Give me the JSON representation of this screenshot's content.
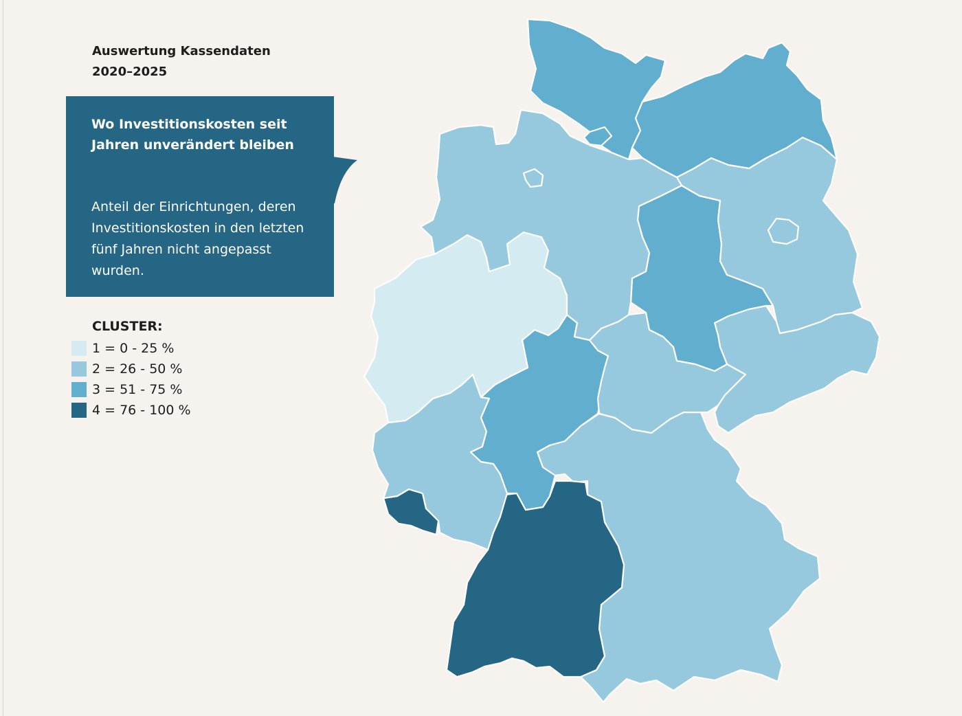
{
  "title": {
    "line1": "Auswertung Kassendaten",
    "line2": "2020–2025"
  },
  "callout": {
    "heading": "Wo Investitionskosten seit Jahren unverändert bleiben",
    "description": "Anteil der Einrichtungen, deren Investitionskosten in den letzten fünf Jahren nicht angepasst wurden."
  },
  "legend": {
    "title": "CLUSTER:",
    "items": [
      {
        "label": "1 = 0 - 25 %",
        "color": "#d4ebf2"
      },
      {
        "label": "2 = 26 - 50 %",
        "color": "#97c9de"
      },
      {
        "label": "3 = 51 - 75 %",
        "color": "#61aecf"
      },
      {
        "label": "4 = 76 - 100 %",
        "color": "#256685"
      }
    ]
  },
  "colors": {
    "background": "#f6f2ee",
    "callout": "#256685",
    "border": "#ffffff"
  },
  "states": [
    {
      "id": "schleswig-holstein",
      "cluster": 3
    },
    {
      "id": "hamburg",
      "cluster": 3
    },
    {
      "id": "mecklenburg-vorpommern",
      "cluster": 3
    },
    {
      "id": "niedersachsen",
      "cluster": 2
    },
    {
      "id": "bremen",
      "cluster": 2
    },
    {
      "id": "berlin",
      "cluster": 2
    },
    {
      "id": "brandenburg",
      "cluster": 2
    },
    {
      "id": "sachsen-anhalt",
      "cluster": 3
    },
    {
      "id": "nordrhein-westfalen",
      "cluster": 1
    },
    {
      "id": "hessen",
      "cluster": 3
    },
    {
      "id": "thueringen",
      "cluster": 2
    },
    {
      "id": "sachsen",
      "cluster": 2
    },
    {
      "id": "rheinland-pfalz",
      "cluster": 2
    },
    {
      "id": "saarland",
      "cluster": 4
    },
    {
      "id": "baden-wuerttemberg",
      "cluster": 4
    },
    {
      "id": "bayern",
      "cluster": 2
    }
  ]
}
